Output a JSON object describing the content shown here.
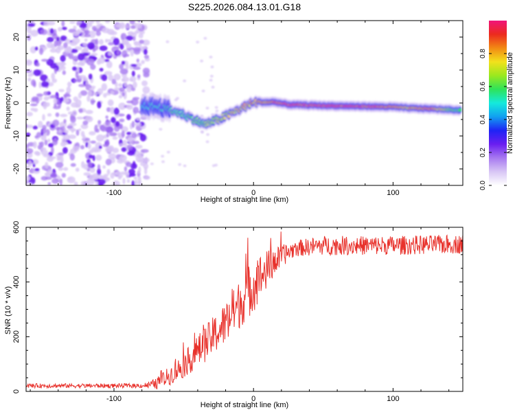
{
  "title": "S225.2026.084.13.01.G18",
  "colors": {
    "signal": "#e8322c",
    "noise": "#9b55f0",
    "colormap": [
      "#ffffff",
      "#d8c6f5",
      "#a779f0",
      "#6a1ef0",
      "#1f23f5",
      "#11a0f0",
      "#14eadc",
      "#2ee35a",
      "#9be81e",
      "#f2e11c",
      "#f28a14",
      "#ec2a1e",
      "#f0147a"
    ]
  },
  "chart_data": [
    {
      "type": "heatmap",
      "title": "",
      "xlabel": "Height of straight line (km)",
      "ylabel": "Frequency (Hz)",
      "xlim": [
        -163,
        150
      ],
      "ylim": [
        -25,
        25
      ],
      "x_ticks": [
        -100,
        0,
        100
      ],
      "y_ticks": [
        -20,
        -10,
        0,
        10,
        20
      ],
      "noise_region_x": [
        -163,
        -80
      ],
      "ridge": {
        "x": [
          -80,
          -70,
          -60,
          -50,
          -40,
          -35,
          -25,
          -15,
          -8,
          0,
          10,
          15,
          25,
          50,
          75,
          100,
          110,
          125,
          140,
          148
        ],
        "y": [
          -1.0,
          -1.0,
          -2.0,
          -3.5,
          -5.5,
          -6.5,
          -5.0,
          -3.0,
          -1.5,
          0.2,
          0.2,
          0.3,
          -0.5,
          -0.8,
          -1.0,
          -1.2,
          -1.5,
          -1.7,
          -2.0,
          -2.2
        ],
        "amplitude": [
          0.2,
          0.25,
          0.3,
          0.3,
          0.35,
          0.4,
          0.45,
          0.55,
          0.6,
          0.65,
          0.7,
          0.9,
          0.95,
          1.0,
          1.0,
          0.8,
          0.6,
          0.9,
          0.4,
          0.3
        ]
      },
      "colorbar": {
        "label": "Normalized spectral amplitude",
        "range": [
          0,
          1
        ],
        "ticks": [
          "0.0",
          "0.2",
          "0.4",
          "0.6",
          "0.8"
        ]
      }
    },
    {
      "type": "line",
      "title": "",
      "xlabel": "Height of straight line (km)",
      "ylabel": "SNR (10 * v/v)",
      "xlim": [
        -163,
        150
      ],
      "ylim": [
        0,
        600
      ],
      "x_ticks": [
        -100,
        0,
        100
      ],
      "y_ticks": [
        0,
        200,
        400,
        600
      ],
      "series": [
        {
          "name": "SNR",
          "envelope_x": [
            -163,
            -80,
            -70,
            -60,
            -50,
            -40,
            -30,
            -20,
            -10,
            0,
            10,
            20,
            30,
            50,
            100,
            150
          ],
          "envelope_mean": [
            20,
            20,
            25,
            55,
            90,
            140,
            190,
            240,
            310,
            380,
            440,
            490,
            520,
            530,
            530,
            535
          ],
          "envelope_amplitude": [
            8,
            8,
            20,
            35,
            45,
            60,
            70,
            80,
            90,
            100,
            70,
            40,
            30,
            35,
            35,
            35
          ]
        }
      ]
    }
  ]
}
